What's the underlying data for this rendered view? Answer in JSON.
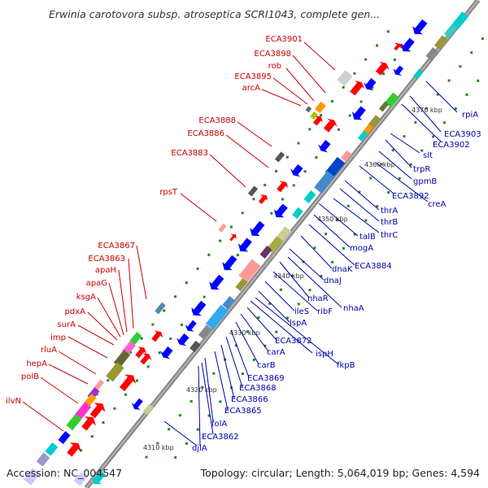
{
  "title": "Erwinia carotovora subsp. atroseptica SCRI1043, complete gen...",
  "footer": {
    "accession": "Accession: NC_004547",
    "summary": "Topology: circular; Length: 5,064,019 bp; Genes: 4,594"
  },
  "colors": {
    "backbone": "#888888",
    "forward_label": "#cc0000",
    "reverse_label": "#0000aa",
    "forward_gene": "#ff0000",
    "reverse_gene": "#0000ff",
    "dots": "#228822"
  },
  "scale_labels": [
    "4310 kbp",
    "4320 kbp",
    "4330 kbp",
    "4340 kbp",
    "4350 kbp",
    "4360 kbp",
    "4370 kbp"
  ],
  "forward_genes": [
    "ECA3901",
    "ECA3898",
    "rob",
    "ECA3895",
    "arcA",
    "ECA3888",
    "ECA3886",
    "ECA3883",
    "rpsT",
    "ECA3867",
    "ECA3863",
    "apaH",
    "apaG",
    "ksgA",
    "pdxA",
    "surA",
    "imp",
    "rluA",
    "hepA",
    "polB",
    "ilvN"
  ],
  "reverse_genes": [
    "rpiA",
    "ECA3903",
    "ECA3902",
    "slt",
    "trpR",
    "gpmB",
    "ECA3892",
    "creA",
    "thrA",
    "thrB",
    "thrC",
    "talB",
    "mogA",
    "dnaK",
    "ECA3884",
    "dnaJ",
    "nhaR",
    "nhaA",
    "ribF",
    "ileS",
    "lspA",
    "fkpB",
    "ispH",
    "ECA3872",
    "carA",
    "carB",
    "ECA3869",
    "ECA3868",
    "ECA3866",
    "ECA3865",
    "folA",
    "ECA3862",
    "djlA"
  ]
}
